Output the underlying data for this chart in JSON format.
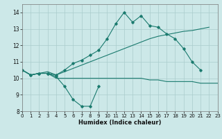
{
  "x": [
    0,
    1,
    2,
    3,
    4,
    5,
    6,
    7,
    8,
    9,
    10,
    11,
    12,
    13,
    14,
    15,
    16,
    17,
    18,
    19,
    20,
    21,
    22,
    23
  ],
  "line1_y": [
    10.5,
    10.2,
    10.3,
    10.3,
    10.1,
    9.5,
    8.7,
    8.3,
    8.3,
    9.5,
    null,
    null,
    null,
    null,
    null,
    null,
    null,
    null,
    null,
    null,
    null,
    null,
    null,
    null
  ],
  "line2_y": [
    10.5,
    10.2,
    10.3,
    10.3,
    10.0,
    10.0,
    10.0,
    10.0,
    10.0,
    10.0,
    10.0,
    10.0,
    10.0,
    10.0,
    10.0,
    9.9,
    9.9,
    9.8,
    9.8,
    9.8,
    9.8,
    9.7,
    9.7,
    9.7
  ],
  "line3_y": [
    10.5,
    10.2,
    10.3,
    10.4,
    10.2,
    10.4,
    10.6,
    10.8,
    11.0,
    11.2,
    11.4,
    11.6,
    11.8,
    12.0,
    12.2,
    12.4,
    12.55,
    12.65,
    12.75,
    12.85,
    12.9,
    13.0,
    13.1,
    null
  ],
  "line4_y": [
    10.5,
    10.2,
    10.3,
    10.3,
    10.2,
    10.5,
    10.9,
    11.1,
    11.4,
    11.7,
    12.4,
    13.3,
    14.0,
    13.4,
    13.8,
    13.2,
    13.1,
    12.7,
    12.4,
    11.8,
    11.0,
    10.5,
    null,
    null
  ],
  "color": "#1a7a6e",
  "bg_color": "#cce8e8",
  "grid_color": "#aacccc",
  "xlabel": "Humidex (Indice chaleur)",
  "ylim": [
    8.0,
    14.5
  ],
  "xlim": [
    0,
    23
  ],
  "yticks": [
    8,
    9,
    10,
    11,
    12,
    13,
    14
  ],
  "xticks": [
    0,
    1,
    2,
    3,
    4,
    5,
    6,
    7,
    8,
    9,
    10,
    11,
    12,
    13,
    14,
    15,
    16,
    17,
    18,
    19,
    20,
    21,
    22,
    23
  ],
  "tick_fontsize": 5.0,
  "xlabel_fontsize": 6.0
}
